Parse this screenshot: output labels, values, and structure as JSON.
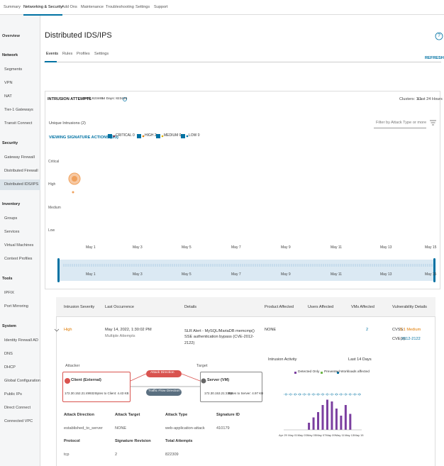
{
  "top_nav": [
    "Summary",
    "Networking & Security",
    "Add Ons",
    "Maintenance",
    "Troubleshooting",
    "Settings",
    "Support"
  ],
  "sidebar": {
    "overview": "Overview",
    "sections": [
      {
        "title": "Network",
        "items": [
          "Segments",
          "VPN",
          "NAT",
          "Tier-1 Gateways",
          "Transit Connect"
        ]
      },
      {
        "title": "Security",
        "items": [
          "Gateway Firewall",
          "Distributed Firewall",
          "Distributed IDS/IPS"
        ]
      },
      {
        "title": "Inventory",
        "items": [
          "Groups",
          "Services",
          "Virtual Machines",
          "Context Profiles"
        ]
      },
      {
        "title": "Tools",
        "items": [
          "IPFIX",
          "Port Mirroring"
        ]
      },
      {
        "title": "System",
        "items": [
          "Identity Firewall AD",
          "DNS",
          "DHCP",
          "Global Configuration",
          "Public IPs",
          "Direct Connect",
          "Connected VPC"
        ]
      }
    ]
  },
  "page": {
    "title": "Distributed IDS/IPS",
    "help": "?",
    "tabs": [
      "Events",
      "Rules",
      "Profiles",
      "Settings"
    ],
    "refresh": "REFRESH"
  },
  "intrusion": {
    "title": "INTRUSION ATTEMPTS",
    "total": "Total: 823465",
    "days": "14 Days: 823410",
    "clusters": "Clusters: 1/1",
    "range": "Last 24 Hours",
    "unique": "Unique Intrusions (2)",
    "filter": "Filter by Attack Type or more",
    "viewing": "VIEWING SIGNATURE ACTIONS (3/3)",
    "severity_filters": [
      "CRITICAL 0",
      "HIGH 2",
      "MEDIUM 0",
      "LOW 0"
    ],
    "severity_levels": [
      "Critical",
      "High",
      "Medium",
      "Low"
    ],
    "dates": [
      "May 1",
      "May 3",
      "May 5",
      "May 7",
      "May 9",
      "May 11",
      "May 13",
      "May 15"
    ]
  },
  "table": {
    "headers": [
      "Intrusion Severity",
      "Last Occurrence",
      "Details",
      "Product Affected",
      "Users Affected",
      "VMs Affected",
      "Vulnerability Details"
    ],
    "row": {
      "severity": "High",
      "last": "May 14, 2022, 1:30:02 PM",
      "attempts": "Multiple Attempts",
      "details": "SLR Alert - MySQL/MariaDB memcmp() SSE authentication bypass (CVE-2012-2122)",
      "product": "NONE",
      "vms": "2",
      "cvss_label": "CVSS:",
      "cvss": "5.1 Medium",
      "cve_label": "CVE(s):",
      "cve": "2012-2122"
    }
  },
  "expanded": {
    "attacker": "Attacker",
    "client": "Client (External)",
    "client_ip": "172.30.152.21:49932",
    "client_bytes": "Bytes to Client: 4.43 KB",
    "attack_direction": "Attack Direction",
    "traffic_direction": "Traffic Flow Direction",
    "target": "Target",
    "server": "Server (VM)",
    "server_ip": "172.30.153.21:3306",
    "server_bytes": "Bytes to Server: 4.97 KB",
    "activity_title": "Intrusion Activity",
    "activity_range": "Last 14 Days",
    "legend": [
      "Detected Only",
      "Prevented",
      "Workloads affected"
    ],
    "activity_dates": [
      "Apr 29",
      "May 01",
      "May 03",
      "May 05",
      "May 07",
      "May 09",
      "May 11",
      "May 13",
      "May 15"
    ],
    "activity_values": [
      0,
      0,
      0,
      0,
      0,
      20,
      35,
      50,
      70,
      85,
      80,
      60,
      40,
      70,
      45,
      0,
      0
    ],
    "activity_ylim": [
      0,
      100
    ],
    "fields": [
      [
        "Attack Direction",
        "established_to_server"
      ],
      [
        "Attack Target",
        "NONE"
      ],
      [
        "Attack Type",
        "web-application-attack"
      ],
      [
        "Signature ID",
        "410179"
      ],
      [
        "Protocol",
        "tcp"
      ],
      [
        "Signature Revision",
        "2"
      ],
      [
        "Total Attempts",
        "822309"
      ]
    ]
  }
}
